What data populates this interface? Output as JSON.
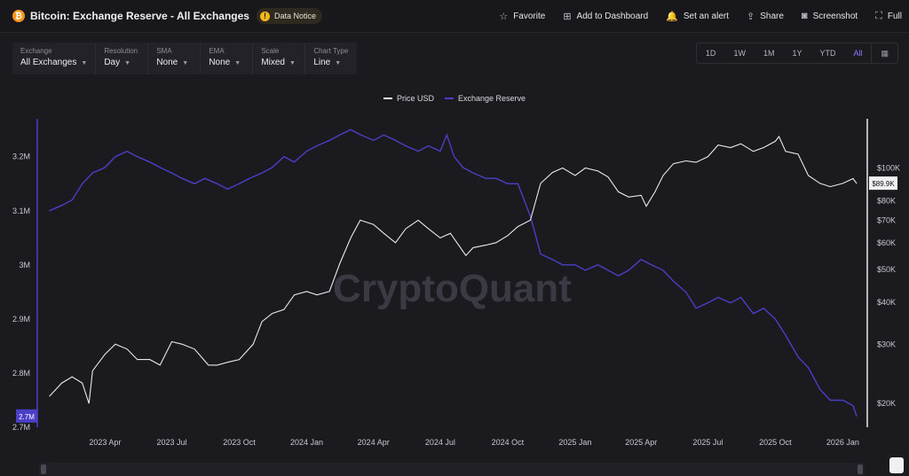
{
  "header": {
    "coin_icon": "bitcoin-icon",
    "title": "Bitcoin: Exchange Reserve - All Exchanges",
    "notice_label": "Data Notice",
    "actions": [
      {
        "icon": "star-icon",
        "glyph": "☆",
        "label": "Favorite"
      },
      {
        "icon": "dashboard-add-icon",
        "glyph": "⊞",
        "label": "Add to Dashboard"
      },
      {
        "icon": "bell-icon",
        "glyph": "🔔",
        "label": "Set an alert"
      },
      {
        "icon": "share-icon",
        "glyph": "⇪",
        "label": "Share"
      },
      {
        "icon": "camera-icon",
        "glyph": "◙",
        "label": "Screenshot"
      },
      {
        "icon": "fullscreen-icon",
        "glyph": "⛶",
        "label": "Full"
      }
    ]
  },
  "controls": [
    {
      "label": "Exchange",
      "value": "All Exchanges"
    },
    {
      "label": "Resolution",
      "value": "Day"
    },
    {
      "label": "SMA",
      "value": "None"
    },
    {
      "label": "EMA",
      "value": "None"
    },
    {
      "label": "Scale",
      "value": "Mixed"
    },
    {
      "label": "Chart Type",
      "value": "Line"
    }
  ],
  "ranges": [
    "1D",
    "1W",
    "1M",
    "1Y",
    "YTD",
    "All"
  ],
  "active_range": "All",
  "watermark": "CryptoQuant",
  "colors": {
    "reserve": "#4b3fc7",
    "price": "#e9e9ee",
    "accent": "#8a7cff",
    "bg": "#1a1a1f"
  },
  "chart_data": {
    "type": "line",
    "legend": [
      "Price USD",
      "Exchange Reserve"
    ],
    "legend_position": "top-center",
    "x_ticks": [
      "2023 Apr",
      "2023 Jul",
      "2023 Oct",
      "2024 Jan",
      "2024 Apr",
      "2024 Jul",
      "2024 Oct",
      "2025 Jan",
      "2025 Apr",
      "2025 Jul",
      "2025 Oct",
      "2026 Jan"
    ],
    "left_axis": {
      "ticks": [
        "3.2M",
        "3.1M",
        "3M",
        "2.9M",
        "2.8M",
        "2.7M"
      ],
      "range": [
        2700000,
        3270000
      ],
      "current_label": "2.7M"
    },
    "right_axis": {
      "ticks": [
        "$100K",
        "$90K",
        "$80K",
        "$70K",
        "$60K",
        "$50K",
        "$40K",
        "$30K",
        "$20K"
      ],
      "scale": "log",
      "current_label": "$89.9K"
    },
    "series": [
      {
        "name": "Exchange Reserve",
        "axis": "left",
        "x": [
          "2023-01-15",
          "2023-02-01",
          "2023-02-15",
          "2023-03-01",
          "2023-03-15",
          "2023-04-01",
          "2023-04-15",
          "2023-05-01",
          "2023-05-15",
          "2023-06-01",
          "2023-06-15",
          "2023-07-01",
          "2023-07-15",
          "2023-08-01",
          "2023-08-15",
          "2023-09-01",
          "2023-09-15",
          "2023-10-01",
          "2023-10-15",
          "2023-11-01",
          "2023-11-15",
          "2023-12-01",
          "2023-12-15",
          "2024-01-01",
          "2024-01-15",
          "2024-02-01",
          "2024-02-15",
          "2024-03-01",
          "2024-03-15",
          "2024-04-01",
          "2024-04-15",
          "2024-05-01",
          "2024-05-15",
          "2024-06-01",
          "2024-06-15",
          "2024-07-01",
          "2024-07-10",
          "2024-07-20",
          "2024-08-01",
          "2024-08-15",
          "2024-09-01",
          "2024-09-15",
          "2024-10-01",
          "2024-10-15",
          "2024-11-01",
          "2024-11-15",
          "2024-12-01",
          "2024-12-15",
          "2025-01-01",
          "2025-01-15",
          "2025-02-01",
          "2025-02-15",
          "2025-03-01",
          "2025-03-15",
          "2025-04-01",
          "2025-04-15",
          "2025-05-01",
          "2025-05-15",
          "2025-06-01",
          "2025-06-15",
          "2025-07-01",
          "2025-07-15",
          "2025-08-01",
          "2025-08-15",
          "2025-09-01",
          "2025-09-15",
          "2025-10-01",
          "2025-10-15",
          "2025-11-01",
          "2025-11-15",
          "2025-12-01",
          "2025-12-15",
          "2026-01-01",
          "2026-01-15",
          "2026-01-20"
        ],
        "values": [
          3100000,
          3110000,
          3120000,
          3150000,
          3170000,
          3180000,
          3200000,
          3210000,
          3200000,
          3190000,
          3180000,
          3170000,
          3160000,
          3150000,
          3160000,
          3150000,
          3140000,
          3150000,
          3160000,
          3170000,
          3180000,
          3200000,
          3190000,
          3210000,
          3220000,
          3230000,
          3240000,
          3250000,
          3240000,
          3230000,
          3240000,
          3230000,
          3220000,
          3210000,
          3220000,
          3210000,
          3240000,
          3200000,
          3180000,
          3170000,
          3160000,
          3160000,
          3150000,
          3150000,
          3090000,
          3020000,
          3010000,
          3000000,
          3000000,
          2990000,
          3000000,
          2990000,
          2980000,
          2990000,
          3010000,
          3000000,
          2990000,
          2970000,
          2950000,
          2920000,
          2930000,
          2940000,
          2930000,
          2940000,
          2910000,
          2920000,
          2900000,
          2870000,
          2830000,
          2810000,
          2770000,
          2750000,
          2750000,
          2740000,
          2720000
        ]
      },
      {
        "name": "Price USD",
        "axis": "right",
        "x": [
          "2023-01-15",
          "2023-02-01",
          "2023-02-15",
          "2023-03-01",
          "2023-03-10",
          "2023-03-15",
          "2023-04-01",
          "2023-04-15",
          "2023-05-01",
          "2023-05-15",
          "2023-06-01",
          "2023-06-15",
          "2023-07-01",
          "2023-07-15",
          "2023-08-01",
          "2023-08-20",
          "2023-09-01",
          "2023-09-15",
          "2023-10-01",
          "2023-10-20",
          "2023-11-01",
          "2023-11-15",
          "2023-12-01",
          "2023-12-15",
          "2024-01-01",
          "2024-01-15",
          "2024-02-01",
          "2024-02-15",
          "2024-03-01",
          "2024-03-14",
          "2024-04-01",
          "2024-04-15",
          "2024-05-01",
          "2024-05-15",
          "2024-06-01",
          "2024-06-15",
          "2024-07-01",
          "2024-07-15",
          "2024-08-05",
          "2024-08-15",
          "2024-09-01",
          "2024-09-15",
          "2024-10-01",
          "2024-10-15",
          "2024-11-01",
          "2024-11-15",
          "2024-12-01",
          "2024-12-15",
          "2025-01-01",
          "2025-01-15",
          "2025-02-01",
          "2025-02-15",
          "2025-03-01",
          "2025-03-15",
          "2025-04-01",
          "2025-04-08",
          "2025-04-20",
          "2025-05-01",
          "2025-05-15",
          "2025-06-01",
          "2025-06-15",
          "2025-07-01",
          "2025-07-15",
          "2025-08-01",
          "2025-08-15",
          "2025-09-01",
          "2025-09-15",
          "2025-10-01",
          "2025-10-06",
          "2025-10-15",
          "2025-11-01",
          "2025-11-15",
          "2025-12-01",
          "2025-12-15",
          "2026-01-01",
          "2026-01-15",
          "2026-01-20"
        ],
        "values": [
          21000,
          23000,
          24000,
          23000,
          20000,
          25000,
          28000,
          30000,
          29000,
          27000,
          27000,
          26000,
          30500,
          30000,
          29000,
          26000,
          26000,
          26500,
          27000,
          30000,
          35000,
          37000,
          38000,
          42000,
          43000,
          42000,
          43000,
          52000,
          62000,
          70000,
          68000,
          64000,
          60000,
          66000,
          70000,
          66000,
          62000,
          64000,
          55000,
          58000,
          59000,
          60000,
          63000,
          67000,
          70000,
          90000,
          97000,
          100000,
          95000,
          100000,
          98000,
          94000,
          85000,
          82000,
          83000,
          77000,
          85000,
          95000,
          103000,
          105000,
          104000,
          108000,
          117000,
          115000,
          118000,
          112000,
          115000,
          120000,
          124000,
          112000,
          110000,
          95000,
          90000,
          88000,
          90000,
          93000,
          89900
        ]
      }
    ]
  }
}
